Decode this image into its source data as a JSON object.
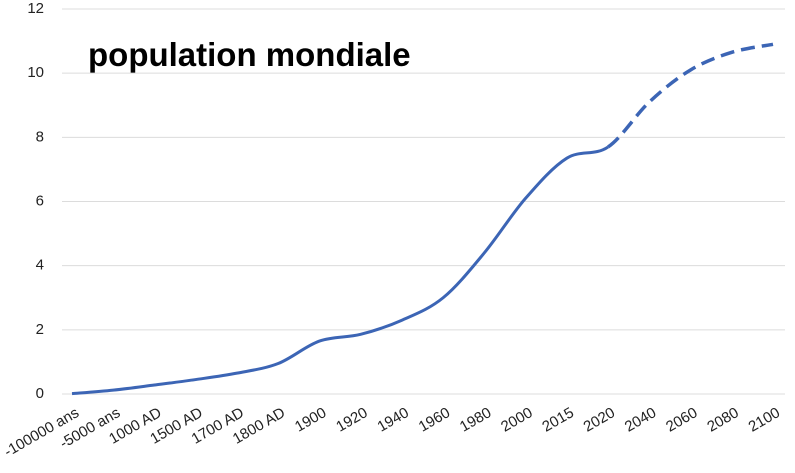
{
  "chart_data": {
    "type": "line",
    "title": "population mondiale",
    "categories": [
      "-100000 ans",
      "-5000 ans",
      "1000 AD",
      "1500 AD",
      "1700 AD",
      "1800 AD",
      "1900",
      "1920",
      "1940",
      "1960",
      "1980",
      "2000",
      "2015",
      "2020",
      "2040",
      "2060",
      "2080",
      "2100"
    ],
    "values": [
      0.01,
      0.12,
      0.28,
      0.45,
      0.65,
      0.95,
      1.65,
      1.86,
      2.3,
      3.0,
      4.4,
      6.1,
      7.35,
      7.7,
      9.1,
      10.1,
      10.65,
      10.9
    ],
    "color": "#3c65b5",
    "dashed_from": "2020",
    "ylim": [
      0,
      12
    ],
    "yticks": [
      0,
      2,
      4,
      6,
      8,
      10,
      12
    ],
    "grid": true
  }
}
